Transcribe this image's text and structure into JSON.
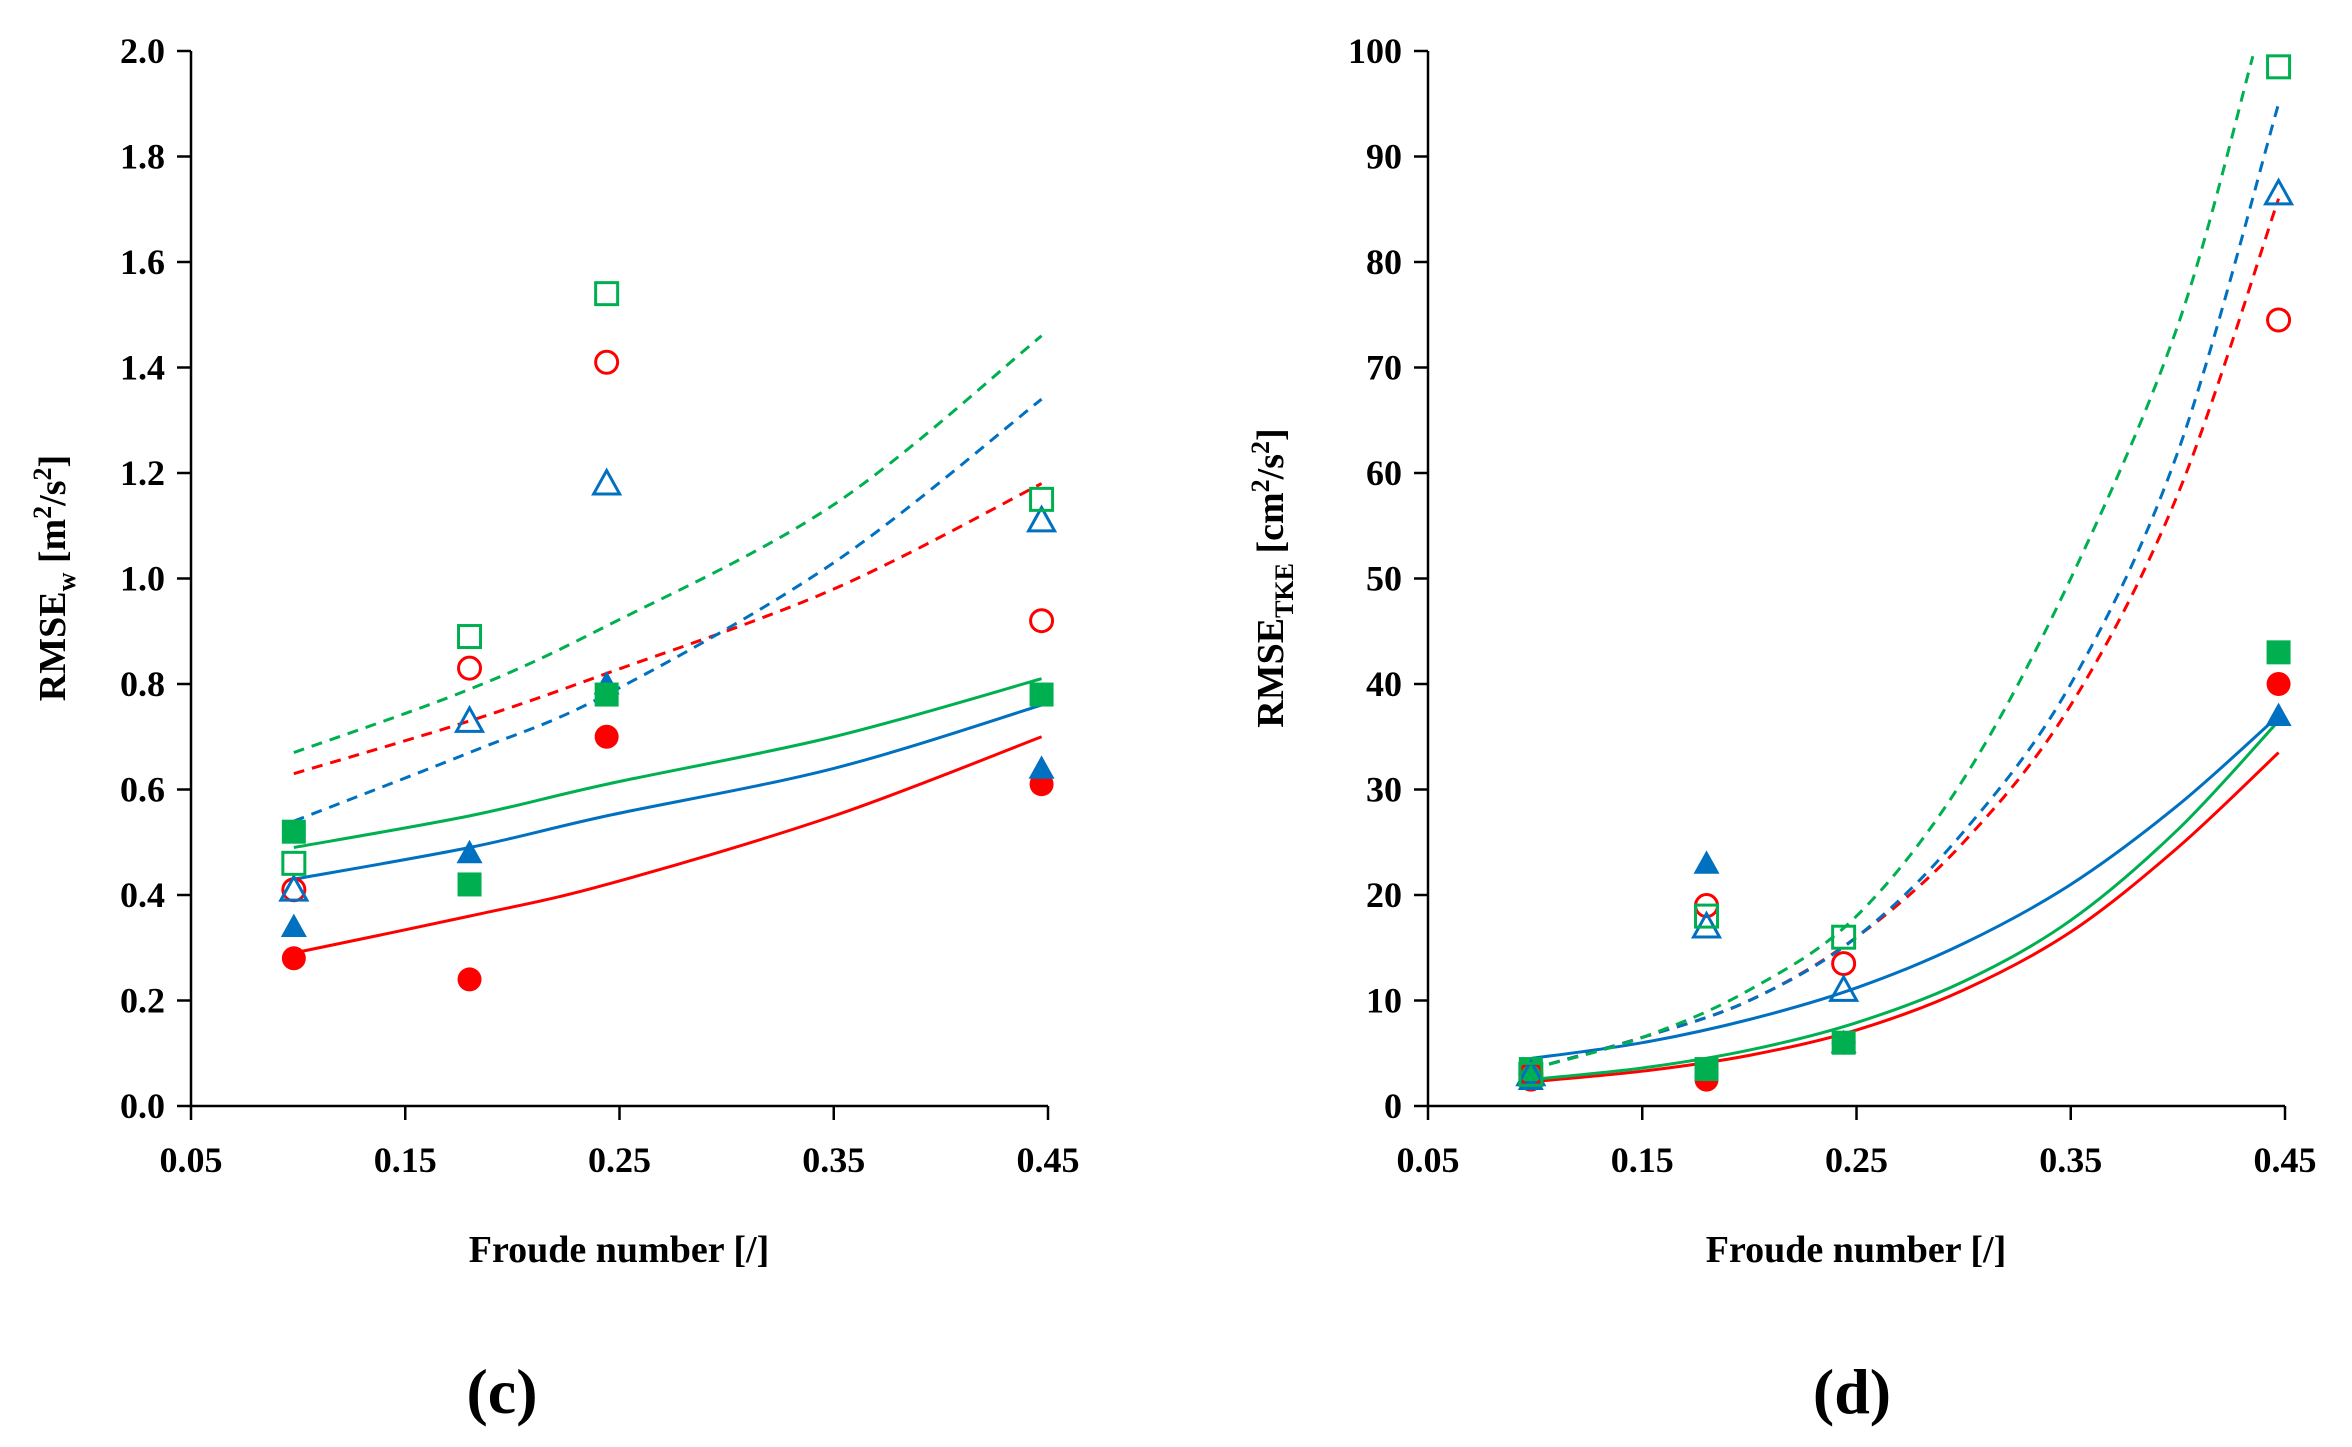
{
  "chart_data": [
    {
      "type": "scatter",
      "panel_label": "(c)",
      "xlabel": "Froude number [/]",
      "ylabel": {
        "main": "RMSE",
        "sub": "w",
        "unit_open": " [m",
        "sup1": "2",
        "unit_mid": "/s",
        "sup2": "2",
        "unit_close": "]"
      },
      "xlim": [
        0.05,
        0.45
      ],
      "ylim": [
        0.0,
        2.0
      ],
      "xticks": [
        "0.05",
        "0.15",
        "0.25",
        "0.35",
        "0.45"
      ],
      "yticks": [
        "0.0",
        "0.2",
        "0.4",
        "0.6",
        "0.8",
        "1.0",
        "1.2",
        "1.4",
        "1.6",
        "1.8",
        "2.0"
      ],
      "grid": false,
      "series": [
        {
          "color": "#ff0000",
          "marker": "circle",
          "filled": true,
          "x": [
            0.098,
            0.18,
            0.244,
            0.447
          ],
          "y": [
            0.28,
            0.24,
            0.7,
            0.61
          ]
        },
        {
          "color": "#0070c0",
          "marker": "triangle",
          "filled": true,
          "x": [
            0.098,
            0.18,
            0.244,
            0.447
          ],
          "y": [
            0.34,
            0.48,
            0.8,
            0.64
          ]
        },
        {
          "color": "#00b050",
          "marker": "square",
          "filled": true,
          "x": [
            0.098,
            0.18,
            0.244,
            0.447
          ],
          "y": [
            0.52,
            0.42,
            0.78,
            0.78
          ]
        },
        {
          "color": "#ff0000",
          "marker": "circle",
          "filled": false,
          "x": [
            0.098,
            0.18,
            0.244,
            0.447
          ],
          "y": [
            0.41,
            0.83,
            1.41,
            0.92
          ]
        },
        {
          "color": "#0070c0",
          "marker": "triangle",
          "filled": false,
          "x": [
            0.098,
            0.18,
            0.244,
            0.447
          ],
          "y": [
            0.41,
            0.73,
            1.18,
            1.11
          ]
        },
        {
          "color": "#00b050",
          "marker": "square",
          "filled": false,
          "x": [
            0.098,
            0.18,
            0.244,
            0.447
          ],
          "y": [
            0.46,
            0.89,
            1.54,
            1.15
          ]
        }
      ],
      "trendlines": [
        {
          "color": "#ff0000",
          "style": "solid",
          "x": [
            0.098,
            0.18,
            0.244,
            0.35,
            0.447
          ],
          "y": [
            0.29,
            0.36,
            0.42,
            0.55,
            0.7
          ]
        },
        {
          "color": "#0070c0",
          "style": "solid",
          "x": [
            0.098,
            0.18,
            0.244,
            0.35,
            0.447
          ],
          "y": [
            0.43,
            0.49,
            0.55,
            0.64,
            0.76
          ]
        },
        {
          "color": "#00b050",
          "style": "solid",
          "x": [
            0.098,
            0.18,
            0.244,
            0.35,
            0.447
          ],
          "y": [
            0.49,
            0.55,
            0.61,
            0.7,
            0.81
          ]
        },
        {
          "color": "#ff0000",
          "style": "dashed",
          "x": [
            0.098,
            0.18,
            0.244,
            0.35,
            0.447
          ],
          "y": [
            0.63,
            0.73,
            0.82,
            0.98,
            1.18
          ]
        },
        {
          "color": "#0070c0",
          "style": "dashed",
          "x": [
            0.098,
            0.18,
            0.244,
            0.35,
            0.447
          ],
          "y": [
            0.54,
            0.67,
            0.78,
            1.03,
            1.34
          ]
        },
        {
          "color": "#00b050",
          "style": "dashed",
          "x": [
            0.098,
            0.18,
            0.244,
            0.35,
            0.447
          ],
          "y": [
            0.67,
            0.79,
            0.91,
            1.14,
            1.46
          ]
        }
      ]
    },
    {
      "type": "scatter",
      "panel_label": "(d)",
      "xlabel": "Froude number [/]",
      "ylabel": {
        "main": "RMSE",
        "sub": "TKE",
        "unit_open": " [cm",
        "sup1": "2",
        "unit_mid": "/s",
        "sup2": "2",
        "unit_close": "]"
      },
      "xlim": [
        0.05,
        0.45
      ],
      "ylim": [
        0,
        100
      ],
      "xticks": [
        "0.05",
        "0.15",
        "0.25",
        "0.35",
        "0.45"
      ],
      "yticks": [
        "0",
        "10",
        "20",
        "30",
        "40",
        "50",
        "60",
        "70",
        "80",
        "90",
        "100"
      ],
      "grid": false,
      "series": [
        {
          "color": "#ff0000",
          "marker": "circle",
          "filled": true,
          "x": [
            0.098,
            0.18,
            0.244,
            0.447
          ],
          "y": [
            2.5,
            2.5,
            6.0,
            40.0
          ]
        },
        {
          "color": "#0070c0",
          "marker": "triangle",
          "filled": true,
          "x": [
            0.098,
            0.18,
            0.244,
            0.447
          ],
          "y": [
            2.5,
            23.0,
            6.0,
            37.0
          ]
        },
        {
          "color": "#00b050",
          "marker": "square",
          "filled": true,
          "x": [
            0.098,
            0.18,
            0.244,
            0.447
          ],
          "y": [
            3.5,
            3.5,
            6.0,
            43.0
          ]
        },
        {
          "color": "#ff0000",
          "marker": "circle",
          "filled": false,
          "x": [
            0.098,
            0.18,
            0.244,
            0.447
          ],
          "y": [
            3.0,
            19.0,
            13.5,
            74.5
          ]
        },
        {
          "color": "#0070c0",
          "marker": "triangle",
          "filled": false,
          "x": [
            0.098,
            0.18,
            0.244,
            0.447
          ],
          "y": [
            3.0,
            17.0,
            11.0,
            86.5
          ]
        },
        {
          "color": "#00b050",
          "marker": "square",
          "filled": false,
          "x": [
            0.098,
            0.18,
            0.244,
            0.447
          ],
          "y": [
            3.0,
            18.0,
            16.0,
            98.5
          ]
        }
      ],
      "trendlines": [
        {
          "color": "#ff0000",
          "style": "solid",
          "x": [
            0.098,
            0.15,
            0.2,
            0.25,
            0.3,
            0.35,
            0.4,
            0.447
          ],
          "y": [
            2.3,
            3.3,
            4.8,
            7.2,
            11.0,
            16.5,
            24.5,
            33.5
          ]
        },
        {
          "color": "#00b050",
          "style": "solid",
          "x": [
            0.098,
            0.15,
            0.2,
            0.25,
            0.3,
            0.35,
            0.4,
            0.447
          ],
          "y": [
            2.5,
            3.6,
            5.3,
            7.9,
            11.8,
            17.6,
            26.2,
            36.5
          ]
        },
        {
          "color": "#0070c0",
          "style": "solid",
          "x": [
            0.098,
            0.15,
            0.2,
            0.25,
            0.3,
            0.35,
            0.4,
            0.447
          ],
          "y": [
            4.5,
            6.0,
            8.2,
            11.2,
            15.4,
            21.0,
            28.5,
            37.0
          ]
        },
        {
          "color": "#ff0000",
          "style": "dashed",
          "x": [
            0.098,
            0.15,
            0.2,
            0.25,
            0.3,
            0.35,
            0.4,
            0.447
          ],
          "y": [
            3.5,
            6.5,
            10.0,
            16.0,
            25.0,
            38.0,
            58.0,
            86.0
          ]
        },
        {
          "color": "#0070c0",
          "style": "dashed",
          "x": [
            0.098,
            0.15,
            0.2,
            0.25,
            0.3,
            0.35,
            0.4,
            0.447
          ],
          "y": [
            3.5,
            6.5,
            10.0,
            16.0,
            26.0,
            40.0,
            62.0,
            95.0
          ]
        },
        {
          "color": "#00b050",
          "style": "dashed",
          "x": [
            0.098,
            0.15,
            0.2,
            0.25,
            0.3,
            0.35,
            0.4,
            0.435
          ],
          "y": [
            3.5,
            6.5,
            11.0,
            18.0,
            31.0,
            50.0,
            74.0,
            99.5
          ]
        }
      ]
    }
  ]
}
